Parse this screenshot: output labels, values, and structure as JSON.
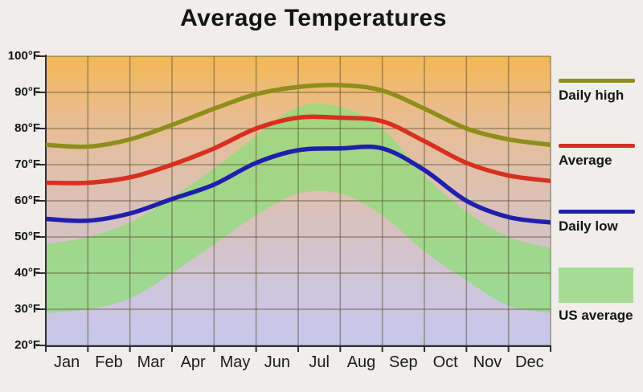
{
  "chart_data": {
    "type": "line",
    "title": "Average Temperatures",
    "x_categories": [
      "Jan",
      "Feb",
      "Mar",
      "Apr",
      "May",
      "Jun",
      "Jul",
      "Aug",
      "Sep",
      "Oct",
      "Nov",
      "Dec"
    ],
    "y_tick_labels": [
      "100°F",
      "90°F",
      "80°F",
      "70°F",
      "60°F",
      "50°F",
      "40°F",
      "30°F",
      "20°F"
    ],
    "y_ticks_f": [
      100,
      90,
      80,
      70,
      60,
      50,
      40,
      30,
      20
    ],
    "ylim": [
      20,
      100
    ],
    "grid": true,
    "legend_position": "right",
    "series": [
      {
        "name": "Daily high",
        "type": "line",
        "color": "#8e8e1a",
        "values_f": [
          75.5,
          75,
          77,
          81,
          85.5,
          89.5,
          91.5,
          92,
          90.5,
          85.5,
          80,
          77
        ],
        "year_end_f": 75.5
      },
      {
        "name": "Average",
        "type": "line",
        "color": "#d8301f",
        "values_f": [
          65,
          65,
          66.5,
          70,
          74.5,
          80,
          83,
          83,
          82,
          76.5,
          70.5,
          67
        ],
        "year_end_f": 65.5
      },
      {
        "name": "Daily low",
        "type": "line",
        "color": "#1f1fae",
        "values_f": [
          55,
          54.5,
          56.5,
          60.5,
          64.5,
          70.5,
          74,
          74.5,
          74.5,
          68.5,
          60,
          55.5
        ],
        "year_end_f": 54
      },
      {
        "name": "US average",
        "type": "band",
        "color": "#8edd78",
        "band_opacity": 0.75,
        "legend_swatch_color": "#a6dc96",
        "high_f": [
          48,
          50,
          54,
          61,
          69,
          78,
          86,
          86,
          80,
          67,
          57,
          50
        ],
        "high_year_end_f": 47,
        "low_f": [
          29,
          30,
          33,
          40,
          48,
          56,
          62,
          62,
          56,
          46,
          38,
          31
        ],
        "low_year_end_f": 29
      }
    ],
    "style": {
      "background_gradient_stops": [
        "#f2b854",
        "#eabc8e",
        "#dfc0ab",
        "#d7c2c2",
        "#cfc6dc",
        "#c7c7ec"
      ],
      "grid_color": "#5c5535",
      "axis_color": "#2e2e38",
      "line_width": 5.5
    }
  }
}
